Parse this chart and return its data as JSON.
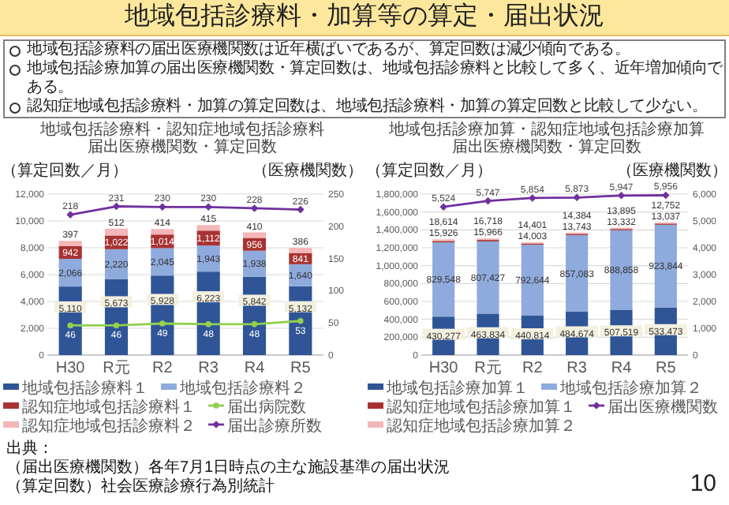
{
  "chart_data": [
    {
      "type": "bar",
      "stacked": true,
      "title": "地域包括診療料・認知症地域包括診療料届出医療機関数・算定回数",
      "ylabel": "（算定回数／月）",
      "y2label": "（医療機関数）",
      "categories": [
        "H30",
        "R元",
        "R2",
        "R3",
        "R4",
        "R5"
      ],
      "series": [
        {
          "name": "地域包括診療料１",
          "type": "bar",
          "color": "#2f5597",
          "values": [
            5110,
            5673,
            5928,
            6223,
            5842,
            5132
          ],
          "value_labels": [
            "5,110",
            "5,673",
            "5,928",
            "6,223",
            "5,842",
            "5,132"
          ]
        },
        {
          "name": "地域包括診療料２",
          "type": "bar",
          "color": "#8faadc",
          "values": [
            2066,
            2220,
            2045,
            1943,
            1938,
            1640
          ],
          "value_labels": [
            "2,066",
            "2,220",
            "2,045",
            "1,943",
            "1,938",
            "1,640"
          ]
        },
        {
          "name": "認知症地域包括診療料１",
          "type": "bar",
          "color": "#a83232",
          "values": [
            942,
            1022,
            1014,
            1112,
            956,
            841
          ],
          "value_labels": [
            "942",
            "1,022",
            "1,014",
            "1,112",
            "956",
            "841"
          ]
        },
        {
          "name": "認知症地域包括診療料２",
          "type": "bar",
          "color": "#f4b6b6",
          "values": [
            397,
            512,
            414,
            415,
            410,
            386
          ],
          "value_labels": [
            "397",
            "512",
            "414",
            "415",
            "410",
            "386"
          ]
        },
        {
          "name": "届出病院数",
          "type": "line",
          "axis": "y2",
          "color": "#92d050",
          "marker": "circle",
          "values": [
            46,
            46,
            49,
            48,
            48,
            53
          ],
          "value_labels": [
            "46",
            "46",
            "49",
            "48",
            "48",
            "53"
          ]
        },
        {
          "name": "届出診療所数",
          "type": "line",
          "axis": "y2",
          "color": "#7030a0",
          "marker": "diamond",
          "values": [
            218,
            231,
            230,
            230,
            228,
            226
          ],
          "value_labels": [
            "218",
            "231",
            "230",
            "230",
            "228",
            "226"
          ]
        }
      ],
      "ylim": [
        0,
        12000
      ],
      "yticks": [
        0,
        {
          "value": 2000,
          "label": "2,000"
        },
        {
          "value": 4000,
          "label": "4,000"
        },
        {
          "value": 6000,
          "label": "6,000"
        },
        {
          "value": 8000,
          "label": "8,000"
        },
        {
          "value": 10000,
          "label": "10,000"
        },
        {
          "value": 12000,
          "label": "12,000"
        }
      ],
      "y2lim": [
        0,
        250
      ],
      "y2ticks": [
        0,
        50,
        100,
        150,
        200,
        250
      ],
      "grid": "y",
      "legend": "bottom",
      "annotations": [
        "地域包括診療料・加算等の算定・届出状況",
        "地域包括診療料の届出医療機関数は近年横ばいであるが、算定回数は減少傾向である。",
        "地域包括診療加算の届出医療機関数・算定回数は、地域包括診療料と比較して多く、近年増加傾向である。",
        "認知症地域包括診療料・加算の算定回数は、地域包括診療料・加算の算定回数と比較して少ない。",
        "出典：",
        "（届出医療機関数）各年7月1日時点の主な施設基準の届出状況",
        "（算定回数）社会医療診療行為別統計"
      ]
    },
    {
      "type": "bar",
      "stacked": true,
      "title": "地域包括診療加算・認知症地域包括診療加算届出医療機関数・算定回数",
      "ylabel": "（算定回数／月）",
      "y2label": "（医療機関数）",
      "categories": [
        "H30",
        "R元",
        "R2",
        "R3",
        "R4",
        "R5"
      ],
      "series": [
        {
          "name": "地域包括診療加算１",
          "type": "bar",
          "color": "#2f5597",
          "values": [
            430277,
            463834,
            440814,
            484674,
            507519,
            533473
          ],
          "value_labels": [
            "430,277",
            "463,834",
            "440,814",
            "484,674",
            "507,519",
            "533,473"
          ]
        },
        {
          "name": "地域包括診療加算２",
          "type": "bar",
          "color": "#8faadc",
          "values": [
            829548,
            807427,
            792644,
            857083,
            888858,
            923844
          ],
          "value_labels": [
            "829,548",
            "807,427",
            "792,644",
            "857,083",
            "888,858",
            "923,844"
          ]
        },
        {
          "name": "認知症地域包括診療加算１",
          "type": "bar",
          "color": "#a83232",
          "values": [
            15926,
            15966,
            14003,
            13743,
            13332,
            13037
          ],
          "value_labels": [
            "15,926",
            "15,966",
            "14,003",
            "13,743",
            "13,332",
            "13,037"
          ]
        },
        {
          "name": "認知症地域包括診療加算２",
          "type": "bar",
          "color": "#f4b6b6",
          "values": [
            18614,
            16718,
            14401,
            14384,
            13895,
            12752
          ],
          "value_labels": [
            "18,614",
            "16,718",
            "14,401",
            "14,384",
            "13,895",
            "12,752"
          ]
        },
        {
          "name": "届出医療機関数",
          "type": "line",
          "axis": "y2",
          "color": "#7030a0",
          "marker": "diamond",
          "values": [
            5524,
            5747,
            5854,
            5873,
            5947,
            5956
          ],
          "value_labels": [
            "5,524",
            "5,747",
            "5,854",
            "5,873",
            "5,947",
            "5,956"
          ]
        }
      ],
      "ylim": [
        0,
        1800000
      ],
      "yticks": [
        0,
        {
          "value": 200000,
          "label": "200,000"
        },
        {
          "value": 400000,
          "label": "400,000"
        },
        {
          "value": 600000,
          "label": "600,000"
        },
        {
          "value": 800000,
          "label": "800,000"
        },
        {
          "value": 1000000,
          "label": "1,000,000"
        },
        {
          "value": 1200000,
          "label": "1,200,000"
        },
        {
          "value": 1400000,
          "label": "1,400,000"
        },
        {
          "value": 1600000,
          "label": "1,600,000"
        },
        {
          "value": 1800000,
          "label": "1,800,000"
        }
      ],
      "y2lim": [
        0,
        6000
      ],
      "y2ticks": [
        0,
        {
          "value": 1000,
          "label": "1,000"
        },
        {
          "value": 2000,
          "label": "2,000"
        },
        {
          "value": 3000,
          "label": "3,000"
        },
        {
          "value": 4000,
          "label": "4,000"
        },
        {
          "value": 5000,
          "label": "5,000"
        },
        {
          "value": 6000,
          "label": "6,000"
        }
      ],
      "grid": "y",
      "legend": "bottom",
      "annotations": [
        "10"
      ]
    }
  ]
}
